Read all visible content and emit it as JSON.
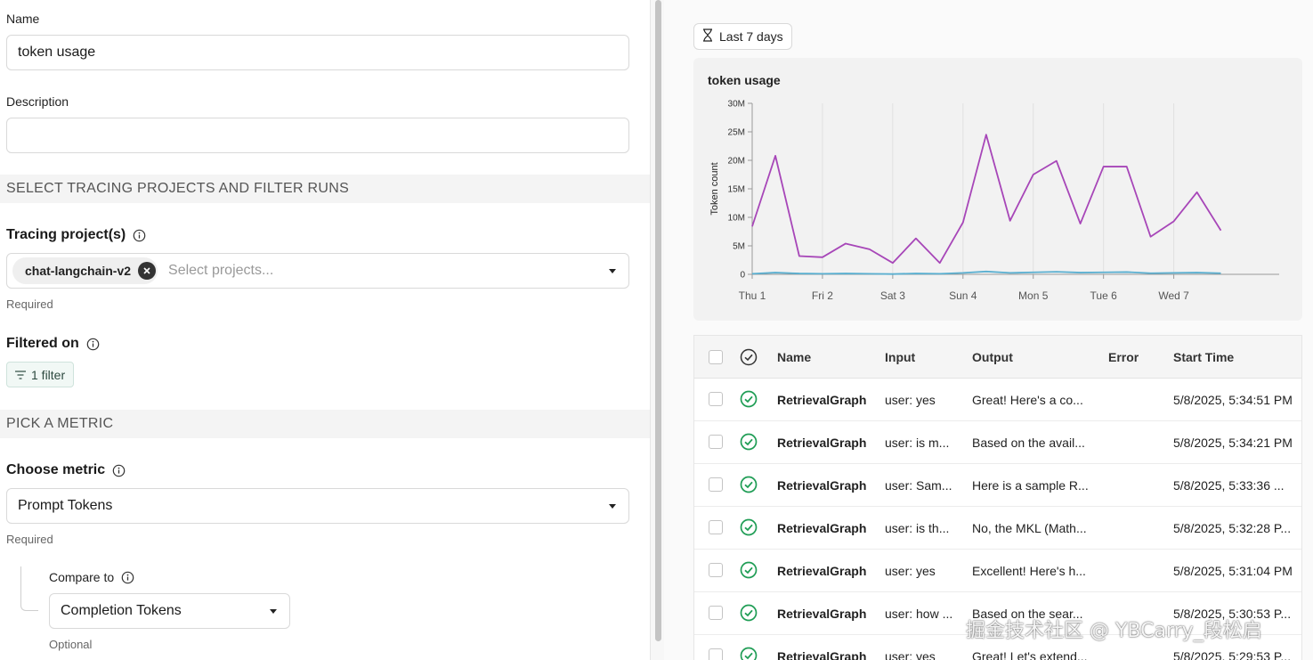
{
  "form": {
    "name_label": "Name",
    "name_value": "token usage",
    "description_label": "Description",
    "description_value": "",
    "section_tracing": "SELECT TRACING PROJECTS AND FILTER RUNS",
    "tracing_label": "Tracing project(s)",
    "tracing_chip": "chat-langchain-v2",
    "tracing_placeholder": "Select projects...",
    "tracing_helper": "Required",
    "filtered_label": "Filtered on",
    "filter_badge": "1 filter",
    "section_metric": "PICK A METRIC",
    "metric_label": "Choose metric",
    "metric_value": "Prompt Tokens",
    "metric_helper": "Required",
    "compare_label": "Compare to",
    "compare_value": "Completion Tokens",
    "compare_helper": "Optional"
  },
  "toolbar": {
    "range_label": "Last 7 days"
  },
  "chart_data": {
    "type": "line",
    "title": "token usage",
    "ylabel": "Token count",
    "xlabel": "",
    "ylim": [
      0,
      30000000
    ],
    "yticks": [
      "0",
      "5M",
      "10M",
      "15M",
      "20M",
      "25M",
      "30M"
    ],
    "xticks": [
      "Thu 1",
      "Fri 2",
      "Sat 3",
      "Sun 4",
      "Mon 5",
      "Tue 6",
      "Wed 7"
    ],
    "grid": true,
    "series": [
      {
        "color": "#a746b8",
        "x": [
          0,
          0.33,
          0.67,
          1,
          1.33,
          1.67,
          2,
          2.33,
          2.67,
          3,
          3.33,
          3.67,
          4,
          4.33,
          4.67,
          5,
          5.33,
          5.67,
          6,
          6.33,
          6.67,
          7,
          7.33
        ],
        "values": [
          8400000,
          20800000,
          3200000,
          3000000,
          5400000,
          4400000,
          2000000,
          6300000,
          2000000,
          9100000,
          24500000,
          9400000,
          17500000,
          19900000,
          8900000,
          18900000,
          18900000,
          6600000,
          9300000,
          14400000,
          7700000,
          null,
          null
        ]
      },
      {
        "color": "#5aafd0",
        "x": [
          0,
          0.33,
          0.67,
          1,
          1.33,
          1.67,
          2,
          2.33,
          2.67,
          3,
          3.33,
          3.67,
          4,
          4.33,
          4.67,
          5,
          5.33,
          5.67,
          6,
          6.33,
          6.67
        ],
        "values": [
          100000,
          300000,
          150000,
          100000,
          150000,
          100000,
          50000,
          150000,
          100000,
          250000,
          500000,
          250000,
          350000,
          450000,
          300000,
          350000,
          400000,
          200000,
          250000,
          300000,
          200000
        ]
      }
    ]
  },
  "table": {
    "headers": {
      "name": "Name",
      "input": "Input",
      "output": "Output",
      "error": "Error",
      "start": "Start Time"
    },
    "rows": [
      {
        "name": "RetrievalGraph",
        "input": "user: yes",
        "output": "Great! Here's a co...",
        "error": "",
        "start": "5/8/2025, 5:34:51 PM"
      },
      {
        "name": "RetrievalGraph",
        "input": "user: is m...",
        "output": "Based on the avail...",
        "error": "",
        "start": "5/8/2025, 5:34:21 PM"
      },
      {
        "name": "RetrievalGraph",
        "input": "user: Sam...",
        "output": "Here is a sample R...",
        "error": "",
        "start": "5/8/2025, 5:33:36 ..."
      },
      {
        "name": "RetrievalGraph",
        "input": "user: is th...",
        "output": "No, the MKL (Math...",
        "error": "",
        "start": "5/8/2025, 5:32:28 P..."
      },
      {
        "name": "RetrievalGraph",
        "input": "user: yes",
        "output": "Excellent! Here's h...",
        "error": "",
        "start": "5/8/2025, 5:31:04 PM"
      },
      {
        "name": "RetrievalGraph",
        "input": "user: how ...",
        "output": "Based on the sear...",
        "error": "",
        "start": "5/8/2025, 5:30:53 P..."
      },
      {
        "name": "RetrievalGraph",
        "input": "user: yes",
        "output": "Great! Let's extend...",
        "error": "",
        "start": "5/8/2025, 5:29:53 P..."
      }
    ]
  },
  "watermark": "掘金技术社区 @ YBCarry_段松启"
}
